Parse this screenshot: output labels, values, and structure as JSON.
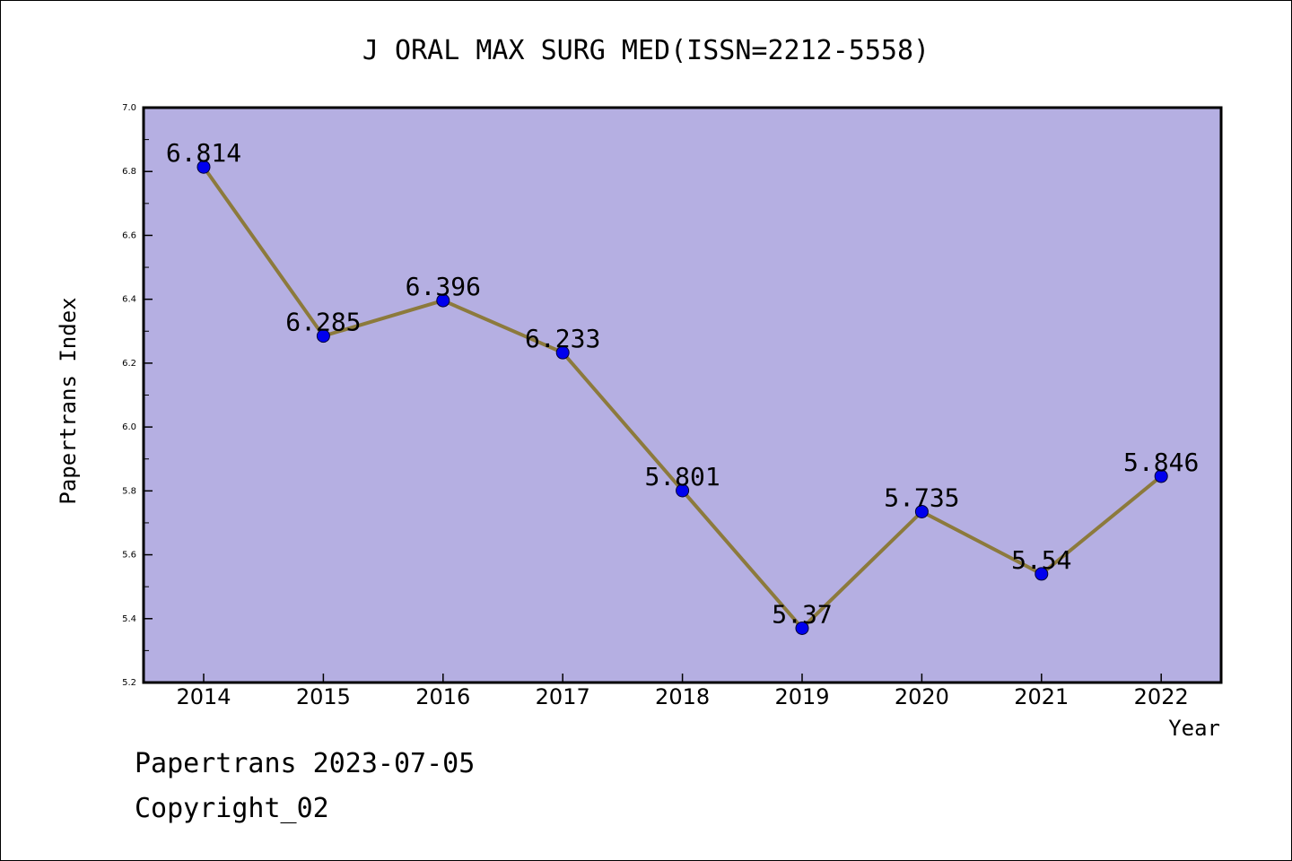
{
  "chart_data": {
    "type": "line",
    "title": "J ORAL MAX SURG MED(ISSN=2212-5558)",
    "xlabel": "Year",
    "ylabel": "Papertrans Index",
    "x": [
      "2014",
      "2015",
      "2016",
      "2017",
      "2018",
      "2019",
      "2020",
      "2021",
      "2022"
    ],
    "series": [
      {
        "values": [
          6.814,
          6.285,
          6.396,
          6.233,
          5.801,
          5.37,
          5.735,
          5.54,
          5.846
        ],
        "labels": [
          "6.814",
          "6.285",
          "6.396",
          "6.233",
          "5.801",
          "5.37",
          "5.735",
          "5.54",
          "5.846"
        ],
        "line_color": "#8c7a3c",
        "marker_color": "#0000ee"
      }
    ],
    "ylim": [
      5.2,
      7.0
    ],
    "yticks": [
      "5.2",
      "5.4",
      "5.6",
      "5.8",
      "6.0",
      "6.2",
      "6.4",
      "6.6",
      "6.8",
      "7.0"
    ],
    "plot_background": "#b5afe2",
    "grid": false,
    "legend": "none"
  },
  "footer": {
    "line1": "Papertrans 2023-07-05",
    "line2": "Copyright_02"
  }
}
